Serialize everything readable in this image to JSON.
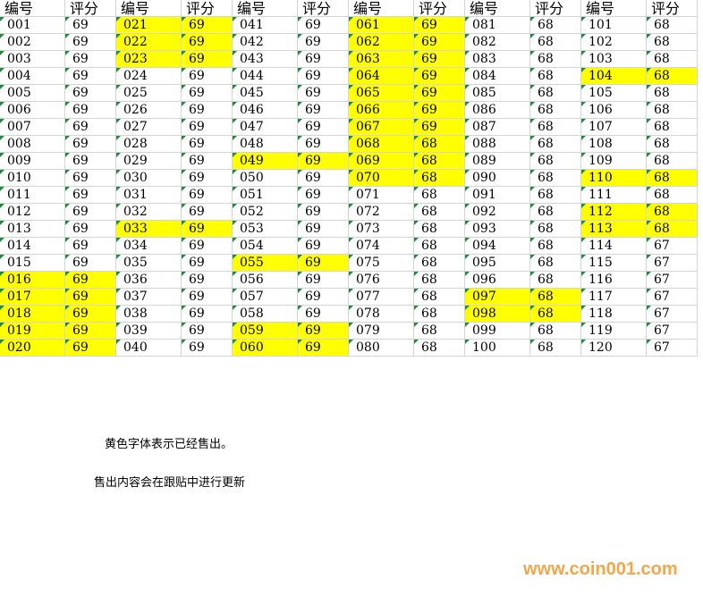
{
  "sheet": {
    "highlight_color": "#ffff00",
    "groups": [
      {
        "header": [
          "编号",
          "评分"
        ],
        "rows": [
          {
            "id": "001",
            "score": "69",
            "sold": false
          },
          {
            "id": "002",
            "score": "69",
            "sold": false
          },
          {
            "id": "003",
            "score": "69",
            "sold": false
          },
          {
            "id": "004",
            "score": "69",
            "sold": false
          },
          {
            "id": "005",
            "score": "69",
            "sold": false
          },
          {
            "id": "006",
            "score": "69",
            "sold": false
          },
          {
            "id": "007",
            "score": "69",
            "sold": false
          },
          {
            "id": "008",
            "score": "69",
            "sold": false
          },
          {
            "id": "009",
            "score": "69",
            "sold": false
          },
          {
            "id": "010",
            "score": "69",
            "sold": false
          },
          {
            "id": "011",
            "score": "69",
            "sold": false
          },
          {
            "id": "012",
            "score": "69",
            "sold": false
          },
          {
            "id": "013",
            "score": "69",
            "sold": false
          },
          {
            "id": "014",
            "score": "69",
            "sold": false
          },
          {
            "id": "015",
            "score": "69",
            "sold": false
          },
          {
            "id": "016",
            "score": "69",
            "sold": true
          },
          {
            "id": "017",
            "score": "69",
            "sold": true
          },
          {
            "id": "018",
            "score": "69",
            "sold": true
          },
          {
            "id": "019",
            "score": "69",
            "sold": true
          },
          {
            "id": "020",
            "score": "69",
            "sold": true
          }
        ]
      },
      {
        "header": [
          "编号",
          "评分"
        ],
        "rows": [
          {
            "id": "021",
            "score": "69",
            "sold": true
          },
          {
            "id": "022",
            "score": "69",
            "sold": true
          },
          {
            "id": "023",
            "score": "69",
            "sold": true
          },
          {
            "id": "024",
            "score": "69",
            "sold": false
          },
          {
            "id": "025",
            "score": "69",
            "sold": false
          },
          {
            "id": "026",
            "score": "69",
            "sold": false
          },
          {
            "id": "027",
            "score": "69",
            "sold": false
          },
          {
            "id": "028",
            "score": "69",
            "sold": false
          },
          {
            "id": "029",
            "score": "69",
            "sold": false
          },
          {
            "id": "030",
            "score": "69",
            "sold": false
          },
          {
            "id": "031",
            "score": "69",
            "sold": false
          },
          {
            "id": "032",
            "score": "69",
            "sold": false
          },
          {
            "id": "033",
            "score": "69",
            "sold": true
          },
          {
            "id": "034",
            "score": "69",
            "sold": false
          },
          {
            "id": "035",
            "score": "69",
            "sold": false
          },
          {
            "id": "036",
            "score": "69",
            "sold": false
          },
          {
            "id": "037",
            "score": "69",
            "sold": false
          },
          {
            "id": "038",
            "score": "69",
            "sold": false
          },
          {
            "id": "039",
            "score": "69",
            "sold": false
          },
          {
            "id": "040",
            "score": "69",
            "sold": false
          }
        ]
      },
      {
        "header": [
          "编号",
          "评分"
        ],
        "rows": [
          {
            "id": "041",
            "score": "69",
            "sold": false
          },
          {
            "id": "042",
            "score": "69",
            "sold": false
          },
          {
            "id": "043",
            "score": "69",
            "sold": false
          },
          {
            "id": "044",
            "score": "69",
            "sold": false
          },
          {
            "id": "045",
            "score": "69",
            "sold": false
          },
          {
            "id": "046",
            "score": "69",
            "sold": false
          },
          {
            "id": "047",
            "score": "69",
            "sold": false
          },
          {
            "id": "048",
            "score": "69",
            "sold": false
          },
          {
            "id": "049",
            "score": "69",
            "sold": true
          },
          {
            "id": "050",
            "score": "69",
            "sold": false
          },
          {
            "id": "051",
            "score": "69",
            "sold": false
          },
          {
            "id": "052",
            "score": "69",
            "sold": false
          },
          {
            "id": "053",
            "score": "69",
            "sold": false
          },
          {
            "id": "054",
            "score": "69",
            "sold": false
          },
          {
            "id": "055",
            "score": "69",
            "sold": true
          },
          {
            "id": "056",
            "score": "69",
            "sold": false
          },
          {
            "id": "057",
            "score": "69",
            "sold": false
          },
          {
            "id": "058",
            "score": "69",
            "sold": false
          },
          {
            "id": "059",
            "score": "69",
            "sold": true
          },
          {
            "id": "060",
            "score": "69",
            "sold": true
          }
        ]
      },
      {
        "header": [
          "编号",
          "评分"
        ],
        "rows": [
          {
            "id": "061",
            "score": "69",
            "sold": true
          },
          {
            "id": "062",
            "score": "69",
            "sold": true
          },
          {
            "id": "063",
            "score": "69",
            "sold": true
          },
          {
            "id": "064",
            "score": "69",
            "sold": true
          },
          {
            "id": "065",
            "score": "69",
            "sold": true
          },
          {
            "id": "066",
            "score": "69",
            "sold": true
          },
          {
            "id": "067",
            "score": "69",
            "sold": true
          },
          {
            "id": "068",
            "score": "68",
            "sold": true
          },
          {
            "id": "069",
            "score": "68",
            "sold": true
          },
          {
            "id": "070",
            "score": "68",
            "sold": true
          },
          {
            "id": "071",
            "score": "68",
            "sold": false
          },
          {
            "id": "072",
            "score": "68",
            "sold": false
          },
          {
            "id": "073",
            "score": "68",
            "sold": false
          },
          {
            "id": "074",
            "score": "68",
            "sold": false
          },
          {
            "id": "075",
            "score": "68",
            "sold": false
          },
          {
            "id": "076",
            "score": "68",
            "sold": false
          },
          {
            "id": "077",
            "score": "68",
            "sold": false
          },
          {
            "id": "078",
            "score": "68",
            "sold": false
          },
          {
            "id": "079",
            "score": "68",
            "sold": false
          },
          {
            "id": "080",
            "score": "68",
            "sold": false
          }
        ]
      },
      {
        "header": [
          "编号",
          "评分"
        ],
        "rows": [
          {
            "id": "081",
            "score": "68",
            "sold": false
          },
          {
            "id": "082",
            "score": "68",
            "sold": false
          },
          {
            "id": "083",
            "score": "68",
            "sold": false
          },
          {
            "id": "084",
            "score": "68",
            "sold": false
          },
          {
            "id": "085",
            "score": "68",
            "sold": false
          },
          {
            "id": "086",
            "score": "68",
            "sold": false
          },
          {
            "id": "087",
            "score": "68",
            "sold": false
          },
          {
            "id": "088",
            "score": "68",
            "sold": false
          },
          {
            "id": "089",
            "score": "68",
            "sold": false
          },
          {
            "id": "090",
            "score": "68",
            "sold": false
          },
          {
            "id": "091",
            "score": "68",
            "sold": false
          },
          {
            "id": "092",
            "score": "68",
            "sold": false
          },
          {
            "id": "093",
            "score": "68",
            "sold": false
          },
          {
            "id": "094",
            "score": "68",
            "sold": false
          },
          {
            "id": "095",
            "score": "68",
            "sold": false
          },
          {
            "id": "096",
            "score": "68",
            "sold": false
          },
          {
            "id": "097",
            "score": "68",
            "sold": true
          },
          {
            "id": "098",
            "score": "68",
            "sold": true
          },
          {
            "id": "099",
            "score": "68",
            "sold": false
          },
          {
            "id": "100",
            "score": "68",
            "sold": false
          }
        ]
      },
      {
        "header": [
          "编号",
          "评分"
        ],
        "rows": [
          {
            "id": "101",
            "score": "68",
            "sold": false
          },
          {
            "id": "102",
            "score": "68",
            "sold": false
          },
          {
            "id": "103",
            "score": "68",
            "sold": false
          },
          {
            "id": "104",
            "score": "68",
            "sold": true
          },
          {
            "id": "105",
            "score": "68",
            "sold": false
          },
          {
            "id": "106",
            "score": "68",
            "sold": false
          },
          {
            "id": "107",
            "score": "68",
            "sold": false
          },
          {
            "id": "108",
            "score": "68",
            "sold": false
          },
          {
            "id": "109",
            "score": "68",
            "sold": false
          },
          {
            "id": "110",
            "score": "68",
            "sold": true
          },
          {
            "id": "111",
            "score": "68",
            "sold": false
          },
          {
            "id": "112",
            "score": "68",
            "sold": true
          },
          {
            "id": "113",
            "score": "68",
            "sold": true
          },
          {
            "id": "114",
            "score": "67",
            "sold": false
          },
          {
            "id": "115",
            "score": "67",
            "sold": false
          },
          {
            "id": "116",
            "score": "67",
            "sold": false
          },
          {
            "id": "117",
            "score": "67",
            "sold": false
          },
          {
            "id": "118",
            "score": "67",
            "sold": false
          },
          {
            "id": "119",
            "score": "67",
            "sold": false
          },
          {
            "id": "120",
            "score": "67",
            "sold": false
          }
        ]
      }
    ]
  },
  "notes": [
    "黄色字体表示已经售出。",
    "售出内容会在跟贴中进行更新"
  ],
  "watermark": "www.coin001.com"
}
